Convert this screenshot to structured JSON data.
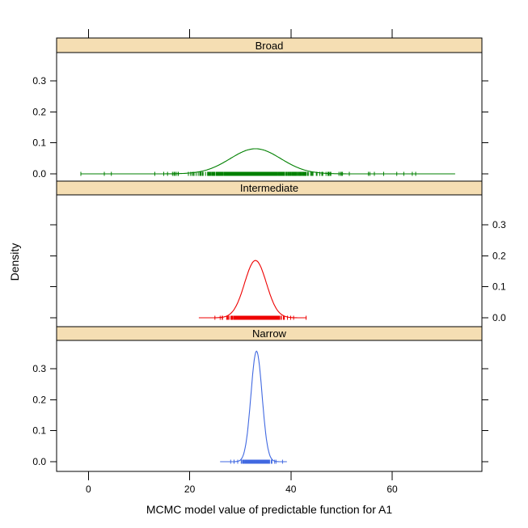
{
  "chart_data": {
    "type": "line",
    "subtype": "kernel-density-with-rug",
    "xlabel": "MCMC model value of predictable function for A1",
    "ylabel": "Density",
    "x_ticks": [
      0,
      20,
      40,
      60
    ],
    "x_tick_labels": [
      "0",
      "20",
      "40",
      "60"
    ],
    "y_ticks": [
      0.0,
      0.1,
      0.2,
      0.3
    ],
    "y_tick_labels": [
      "0.0",
      "0.1",
      "0.2",
      "0.3"
    ],
    "xlim": [
      -6.3,
      77.7
    ],
    "ylim": [
      0,
      0.39
    ],
    "grid": "off",
    "strip_fill": "#F5DEB3",
    "border_color": "#000000",
    "panels": [
      {
        "label": "Broad",
        "color": "#008000",
        "mean": 33,
        "sd": 5,
        "peak_density": 0.081,
        "curve_range": [
          -1.5,
          72.5
        ],
        "y_labels_side": "left",
        "rug": {
          "n": 600,
          "sd": 5,
          "outliers": 90,
          "outlier_sd": 14,
          "clip": [
            -1.5,
            72.5
          ]
        }
      },
      {
        "label": "Intermediate",
        "color": "#EE0000",
        "mean": 33,
        "sd": 2.15,
        "peak_density": 0.185,
        "curve_range": [
          21.8,
          43.2
        ],
        "y_labels_side": "right",
        "rug": {
          "n": 600,
          "sd": 2.1,
          "outliers": 70,
          "outlier_sd": 4.5,
          "clip": [
            22,
            43
          ]
        }
      },
      {
        "label": "Narrow",
        "color": "#4169E1",
        "mean": 33.2,
        "sd": 1.1,
        "peak_density": 0.357,
        "curve_range": [
          26,
          39.3
        ],
        "y_labels_side": "left",
        "rug": {
          "n": 550,
          "sd": 1.1,
          "outliers": 50,
          "outlier_sd": 2.2,
          "clip": [
            26.5,
            38.7
          ]
        }
      }
    ]
  }
}
